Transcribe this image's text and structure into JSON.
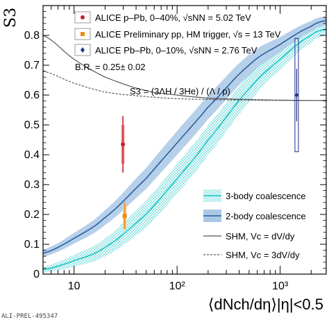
{
  "chart_data": {
    "type": "line",
    "ylabel": "S3",
    "xlabel": "⟨dNch/dη⟩|η|<0.5",
    "x_scale": "log",
    "xlim": [
      5,
      2800
    ],
    "ylim": [
      0,
      0.9
    ],
    "xticks": [
      {
        "value": 10,
        "label": "10"
      },
      {
        "value": 100,
        "label": "10²"
      },
      {
        "value": 1000,
        "label": "10³"
      }
    ],
    "yticks": [
      0,
      0.1,
      0.2,
      0.3,
      0.4,
      0.5,
      0.6,
      0.7,
      0.8
    ],
    "ytick_labels": [
      "0",
      "0.1",
      "0.2",
      "0.3",
      "0.4",
      "0.5",
      "0.6",
      "0.7",
      "0.8"
    ],
    "preliminary_label": "ALI-PREL-495347",
    "br_text": "B.R. = 0.25± 0.02",
    "formula_text": "S3 = (3ΛH / 3He) / (Λ / p)",
    "measurements": [
      {
        "name": "ALICE p–Pb, 0–40%, √sNN = 5.02 TeV",
        "color": "#c8202a",
        "marker": "circle",
        "x": 29.8,
        "y": 0.435,
        "stat": 0.095,
        "syst": 0.065
      },
      {
        "name": "ALICE Preliminary pp, HM trigger, √s = 13 TeV",
        "color": "#f08c12",
        "marker": "square",
        "x": 31,
        "y": 0.195,
        "stat": 0.045,
        "syst": 0.04
      },
      {
        "name": "ALICE Pb–Pb, 0–10%, √sNN = 2.76 TeV",
        "color": "#1f2f8c",
        "marker": "diamond",
        "x": 1447,
        "y": 0.6,
        "stat": 0.22,
        "syst": 0.19
      }
    ],
    "series": [
      {
        "name": "3-body coalescence",
        "color": "#19c4c4",
        "band": "hatched",
        "x": [
          5,
          10,
          20,
          50,
          100,
          200,
          500,
          1000,
          2000,
          2800
        ],
        "y": [
          0.015,
          0.045,
          0.09,
          0.2,
          0.32,
          0.45,
          0.62,
          0.72,
          0.8,
          0.82
        ],
        "band_half_width": [
          0.01,
          0.02,
          0.03,
          0.045,
          0.05,
          0.05,
          0.045,
          0.035,
          0.025,
          0.02
        ]
      },
      {
        "name": "2-body coalescence",
        "color": "#2b5f9e",
        "band": "solid",
        "x": [
          5,
          10,
          20,
          50,
          100,
          200,
          500,
          1000,
          2000,
          2800
        ],
        "y": [
          0.07,
          0.12,
          0.19,
          0.32,
          0.44,
          0.56,
          0.7,
          0.77,
          0.83,
          0.85
        ],
        "band_half_width": [
          0.012,
          0.018,
          0.025,
          0.035,
          0.04,
          0.04,
          0.035,
          0.025,
          0.018,
          0.015
        ]
      },
      {
        "name": "SHM, Vc = dV/dy",
        "color": "#555555",
        "dash": "solid",
        "x": [
          5,
          10,
          20,
          50,
          100,
          200,
          500,
          1000,
          2000,
          2800
        ],
        "y": [
          0.8,
          0.72,
          0.66,
          0.615,
          0.6,
          0.59,
          0.585,
          0.583,
          0.582,
          0.582
        ]
      },
      {
        "name": "SHM, Vc = 3dV/dy",
        "color": "#555555",
        "dash": "dashed",
        "x": [
          5,
          10,
          20,
          50,
          100,
          200,
          500,
          1000,
          2000,
          2800
        ],
        "y": [
          0.68,
          0.64,
          0.61,
          0.595,
          0.588,
          0.585,
          0.583,
          0.582,
          0.582,
          0.582
        ]
      }
    ],
    "legend_top": [
      {
        "label": "ALICE p–Pb, 0–40%, √sNN = 5.02 TeV"
      },
      {
        "label": "ALICE Preliminary pp, HM trigger, √s = 13 TeV"
      },
      {
        "label": "ALICE Pb–Pb, 0–10%, √sNN = 2.76 TeV"
      }
    ],
    "legend_bottom": [
      {
        "label": "3-body coalescence"
      },
      {
        "label": "2-body coalescence"
      },
      {
        "label": "SHM, Vc = dV/dy"
      },
      {
        "label": "SHM, Vc = 3dV/dy"
      }
    ]
  }
}
